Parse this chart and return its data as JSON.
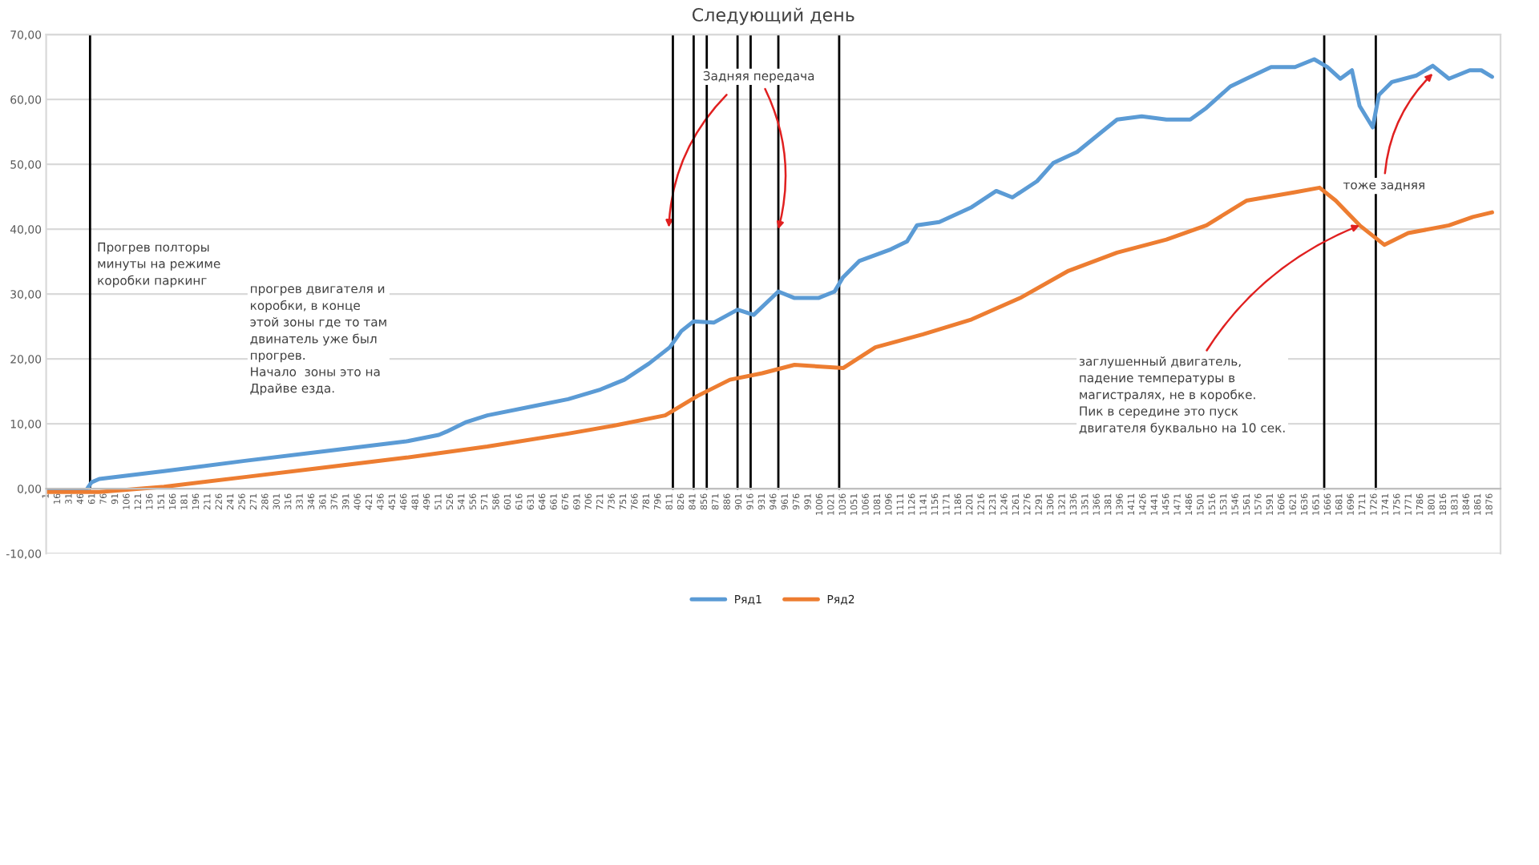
{
  "chart_data": {
    "type": "line",
    "title": "Следующий день",
    "x": [
      1,
      53,
      60,
      70,
      154,
      259,
      364,
      469,
      511,
      521,
      547,
      574,
      637,
      679,
      721,
      752,
      784,
      811,
      826,
      842,
      868,
      899,
      920,
      952,
      973,
      1004,
      1025,
      1036,
      1057,
      1098,
      1119,
      1132,
      1161,
      1203,
      1235,
      1256,
      1288,
      1309,
      1340,
      1371,
      1392,
      1424,
      1456,
      1487,
      1508,
      1539,
      1560,
      1592,
      1623,
      1648,
      1665,
      1682,
      1697,
      1707,
      1724,
      1732,
      1749,
      1781,
      1802,
      1823,
      1850,
      1865,
      1879
    ],
    "series": [
      {
        "name": "Ряд1",
        "color": "#5b9bd5",
        "values": [
          -0.3,
          -0.2,
          1.0,
          1.5,
          2.7,
          4.3,
          5.8,
          7.3,
          8.3,
          8.8,
          10.3,
          11.3,
          12.8,
          13.8,
          15.3,
          16.8,
          19.3,
          21.8,
          24.3,
          25.8,
          25.6,
          27.6,
          26.8,
          30.4,
          29.4,
          29.4,
          30.4,
          32.6,
          35.1,
          36.9,
          38.1,
          40.6,
          41.1,
          43.4,
          45.9,
          44.9,
          47.4,
          50.2,
          51.9,
          54.9,
          56.9,
          57.4,
          56.9,
          56.9,
          58.7,
          62.0,
          63.2,
          65.0,
          65.0,
          66.2,
          65.0,
          63.2,
          64.5,
          59.0,
          55.7,
          60.7,
          62.7,
          63.7,
          65.2,
          63.2,
          64.5,
          64.5,
          63.5
        ]
      },
      {
        "name": "Ряд2",
        "color": "#ed7d31",
        "x": [
          1,
          70,
          154,
          259,
          364,
          469,
          574,
          679,
          742,
          805,
          847,
          889,
          931,
          973,
          1036,
          1078,
          1140,
          1203,
          1266,
          1329,
          1392,
          1456,
          1508,
          1560,
          1623,
          1655,
          1676,
          1707,
          1739,
          1770,
          1823,
          1854,
          1879
        ],
        "values": [
          -0.5,
          -0.5,
          0.3,
          1.8,
          3.3,
          4.8,
          6.5,
          8.5,
          9.8,
          11.3,
          14.3,
          16.8,
          17.8,
          19.1,
          18.6,
          21.8,
          23.8,
          26.1,
          29.4,
          33.6,
          36.4,
          38.4,
          40.6,
          44.4,
          45.7,
          46.4,
          44.4,
          40.6,
          37.6,
          39.4,
          40.6,
          41.9,
          42.6
        ]
      }
    ],
    "xlim": [
      1,
      1890
    ],
    "xticks": [
      1,
      16,
      31,
      46,
      61,
      76,
      91,
      106,
      121,
      136,
      151,
      166,
      181,
      196,
      211,
      226,
      241,
      256,
      271,
      286,
      301,
      316,
      331,
      346,
      361,
      376,
      391,
      406,
      421,
      436,
      451,
      466,
      481,
      496,
      511,
      526,
      541,
      556,
      571,
      586,
      601,
      616,
      631,
      646,
      661,
      676,
      691,
      706,
      721,
      736,
      751,
      766,
      781,
      796,
      811,
      826,
      841,
      856,
      871,
      886,
      901,
      916,
      931,
      946,
      961,
      976,
      991,
      1006,
      1021,
      1036,
      1051,
      1066,
      1081,
      1096,
      1111,
      1126,
      1141,
      1156,
      1171,
      1186,
      1201,
      1216,
      1231,
      1246,
      1261,
      1276,
      1291,
      1306,
      1321,
      1336,
      1351,
      1366,
      1381,
      1396,
      1411,
      1426,
      1441,
      1456,
      1471,
      1486,
      1501,
      1516,
      1531,
      1546,
      1561,
      1576,
      1591,
      1606,
      1621,
      1636,
      1651,
      1666,
      1681,
      1696,
      1711,
      1726,
      1741,
      1756,
      1771,
      1786,
      1801,
      1816,
      1831,
      1846,
      1861,
      1876
    ],
    "ylim": [
      -10,
      70
    ],
    "yticks": [
      {
        "value": -10,
        "label": "-10,00"
      },
      {
        "value": 0,
        "label": "0,00"
      },
      {
        "value": 10,
        "label": "10,00"
      },
      {
        "value": 20,
        "label": "20,00"
      },
      {
        "value": 30,
        "label": "30,00"
      },
      {
        "value": 40,
        "label": "40,00"
      },
      {
        "value": 50,
        "label": "50,00"
      },
      {
        "value": 60,
        "label": "60,00"
      },
      {
        "value": 70,
        "label": "70,00"
      }
    ],
    "grid": "y",
    "legend": "bottom",
    "marker": "none",
    "line_style": "solid",
    "ref_lines": [
      {
        "axis": "x",
        "value": 58,
        "color": "#000000"
      },
      {
        "axis": "x",
        "value": 815,
        "color": "#000000"
      },
      {
        "axis": "x",
        "value": 842,
        "color": "#000000"
      },
      {
        "axis": "x",
        "value": 859,
        "color": "#000000"
      },
      {
        "axis": "x",
        "value": 899,
        "color": "#000000"
      },
      {
        "axis": "x",
        "value": 916,
        "color": "#000000"
      },
      {
        "axis": "x",
        "value": 952,
        "color": "#000000"
      },
      {
        "axis": "x",
        "value": 1031,
        "color": "#000000"
      },
      {
        "axis": "x",
        "value": 1661,
        "color": "#000000"
      },
      {
        "axis": "x",
        "value": 1728,
        "color": "#000000"
      }
    ],
    "annotations": [
      "Прогрев полторы\nминуты на режиме\nкоробки паркинг",
      "прогрев двигателя и\nкоробки, в конце\nэтой зоны где то там\nдвинатель уже был\nпрогрев.\nНачало  зоны это на\nДрайве езда.",
      {
        "text": "Задняя передача",
        "x": 952,
        "y": 40
      },
      {
        "text": "тоже задняя",
        "x": 1802,
        "y": 64
      },
      {
        "text": "заглушенный двигатель,\nпадение температуры в\nмагистралях, не в коробке.\nПик в середине это пуск\nдвигателя буквально на 10 сек.",
        "x": 1707,
        "y": 40.6
      }
    ]
  }
}
